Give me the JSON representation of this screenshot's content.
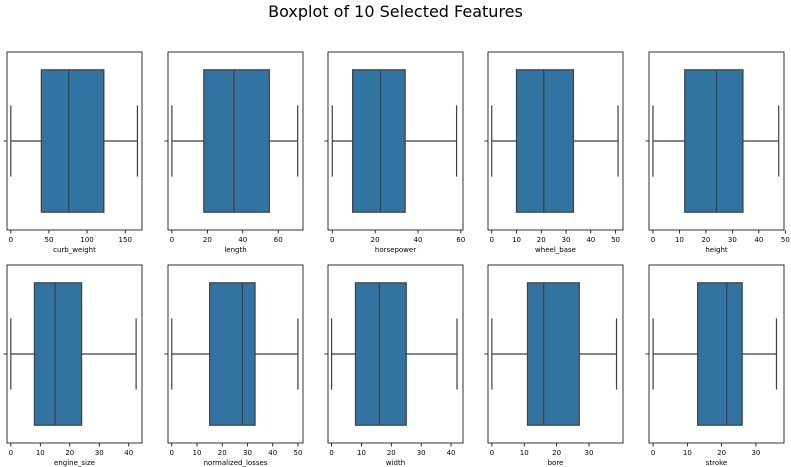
{
  "figure": {
    "title": "Boxplot of 10 Selected Features"
  },
  "chart_data": [
    {
      "type": "box",
      "xlabel": "curb_weight",
      "xlim": [
        -5,
        172
      ],
      "ticks": [
        0,
        50,
        100,
        150
      ],
      "box": {
        "whisker_low": 0,
        "q1": 40,
        "median": 76,
        "q3": 122,
        "whisker_high": 166
      },
      "color": "#3274a1"
    },
    {
      "type": "box",
      "xlabel": "length",
      "xlim": [
        -2.2,
        74
      ],
      "ticks": [
        0,
        20,
        40,
        60
      ],
      "box": {
        "whisker_low": 0,
        "q1": 18,
        "median": 35,
        "q3": 55,
        "whisker_high": 71
      },
      "color": "#3274a1"
    },
    {
      "type": "box",
      "xlabel": "horsepower",
      "xlim": [
        -2,
        61
      ],
      "ticks": [
        0,
        20,
        40,
        60
      ],
      "box": {
        "whisker_low": 0,
        "q1": 9.5,
        "median": 22.5,
        "q3": 34,
        "whisker_high": 58
      },
      "color": "#3274a1"
    },
    {
      "type": "box",
      "xlabel": "wheel_base",
      "xlim": [
        -1.5,
        53
      ],
      "ticks": [
        0,
        10,
        20,
        30,
        40,
        50
      ],
      "box": {
        "whisker_low": 0,
        "q1": 10,
        "median": 21,
        "q3": 33,
        "whisker_high": 51
      },
      "color": "#3274a1"
    },
    {
      "type": "box",
      "xlabel": "height",
      "xlim": [
        -1.5,
        49.5
      ],
      "ticks": [
        0,
        10,
        20,
        30,
        40,
        50
      ],
      "box": {
        "whisker_low": 0,
        "q1": 12,
        "median": 24,
        "q3": 34,
        "whisker_high": 47.5
      },
      "color": "#3274a1"
    },
    {
      "type": "box",
      "xlabel": "engine_size",
      "xlim": [
        -1.3,
        44.5
      ],
      "ticks": [
        0,
        10,
        20,
        30,
        40
      ],
      "box": {
        "whisker_low": 0,
        "q1": 8,
        "median": 15,
        "q3": 24,
        "whisker_high": 42.5
      },
      "color": "#3274a1"
    },
    {
      "type": "box",
      "xlabel": "normalized_losses",
      "xlim": [
        -1.5,
        52
      ],
      "ticks": [
        0,
        10,
        20,
        30,
        40,
        50
      ],
      "box": {
        "whisker_low": 0,
        "q1": 15,
        "median": 28,
        "q3": 33,
        "whisker_high": 50
      },
      "color": "#3274a1"
    },
    {
      "type": "box",
      "xlabel": "width",
      "xlim": [
        -1.2,
        44
      ],
      "ticks": [
        0,
        10,
        20,
        30,
        40
      ],
      "box": {
        "whisker_low": 0,
        "q1": 8,
        "median": 16,
        "q3": 25,
        "whisker_high": 42
      },
      "color": "#3274a1"
    },
    {
      "type": "box",
      "xlabel": "bore",
      "xlim": [
        -1.2,
        40.5
      ],
      "ticks": [
        0,
        10,
        20,
        30
      ],
      "box": {
        "whisker_low": 0,
        "q1": 11,
        "median": 16,
        "q3": 27,
        "whisker_high": 38.5
      },
      "color": "#3274a1"
    },
    {
      "type": "box",
      "xlabel": "stroke",
      "xlim": [
        -1.2,
        38.2
      ],
      "ticks": [
        0,
        10,
        20,
        30
      ],
      "box": {
        "whisker_low": 0,
        "q1": 13,
        "median": 21.5,
        "q3": 26,
        "whisker_high": 36
      },
      "color": "#3274a1"
    }
  ]
}
